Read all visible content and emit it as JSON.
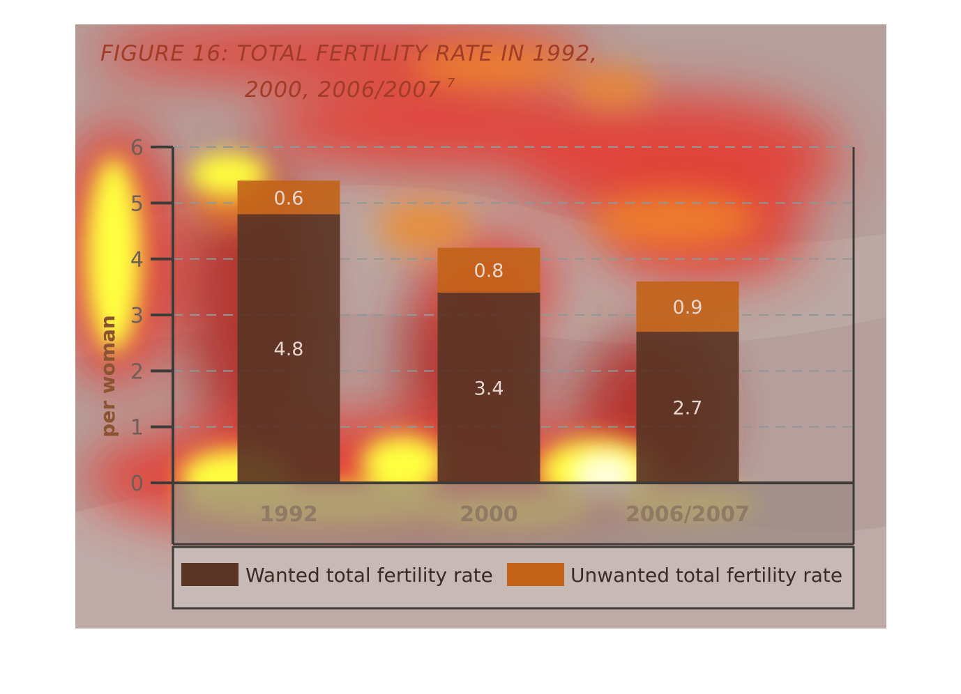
{
  "chart_data": {
    "type": "bar",
    "stacked": true,
    "title_line1": "FIGURE 16: TOTAL FERTILITY RATE IN 1992,",
    "title_line2": "2000, 2006/2007",
    "title_sup": "7",
    "ylabel": "per woman",
    "xlabel": "",
    "ylim": [
      0,
      6
    ],
    "yticks": [
      "0",
      "1",
      "2",
      "3",
      "4",
      "5",
      "6"
    ],
    "grid": true,
    "legend_position": "bottom",
    "categories": [
      "1992",
      "2000",
      "2006/2007"
    ],
    "series": [
      {
        "name": "Wanted total fertility rate",
        "values": [
          4.8,
          3.4,
          2.7
        ],
        "labels": [
          "4.8",
          "3.4",
          "2.7"
        ],
        "color": "#5a3424"
      },
      {
        "name": "Unwanted total fertility rate",
        "values": [
          0.6,
          0.8,
          0.9
        ],
        "labels": [
          "0.6",
          "0.8",
          "0.9"
        ],
        "color": "#c26318"
      }
    ]
  },
  "colors": {
    "panel_background": "#b59f9c",
    "axis": "#3e3a38",
    "gridline": "#8f9797",
    "heat_yellow": "#ffff40",
    "heat_red": "#e8352a"
  }
}
